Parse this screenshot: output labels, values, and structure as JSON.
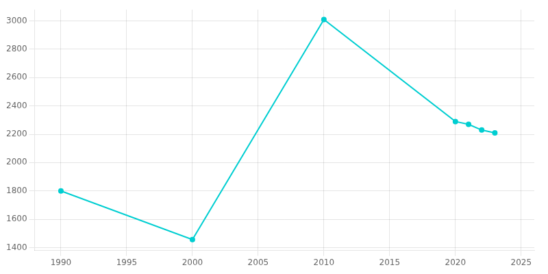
{
  "chart_data": {
    "type": "line",
    "x": [
      1990,
      2000,
      2010,
      2020,
      2021,
      2022,
      2023
    ],
    "values": [
      1800,
      1457,
      3010,
      2290,
      2270,
      2230,
      2210
    ],
    "color": "#00CED1",
    "marker": "circle",
    "xlim": [
      1988,
      2026
    ],
    "ylim": [
      1380,
      3080
    ],
    "xticks": [
      1990,
      1995,
      2000,
      2005,
      2010,
      2015,
      2020,
      2025
    ],
    "yticks": [
      1400,
      1600,
      1800,
      2000,
      2200,
      2400,
      2600,
      2800,
      3000
    ],
    "grid": true
  }
}
